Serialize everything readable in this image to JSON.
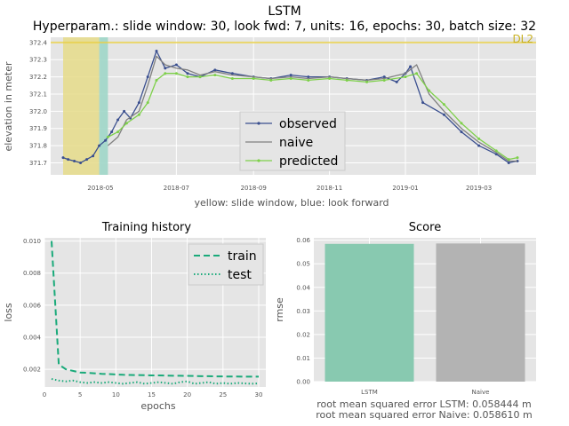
{
  "figure": {
    "title": "LSTM",
    "subtitle": "Hyperparam.: slide window: 30, look fwd: 7, units: 16, epochs: 30, batch size: 32"
  },
  "chart_data": [
    {
      "type": "line",
      "id": "main",
      "ylabel": "elevation in meter",
      "xlabel": "yellow: slide window, blue: look forward",
      "ylim": [
        371.63,
        372.43
      ],
      "xlim": [
        "2018-03-22",
        "2019-04-16"
      ],
      "x_ticks": [
        "2018-05",
        "2018-07",
        "2018-09",
        "2018-11",
        "2019-01",
        "2019-03"
      ],
      "y_ticks": [
        "371.7",
        "371.8",
        "371.9",
        "372.0",
        "372.1",
        "372.2",
        "372.3",
        "372.4"
      ],
      "reference_line": {
        "label": "DL2",
        "value": 372.4,
        "color": "#e8d04a"
      },
      "slide_window": {
        "start": "2018-04-01",
        "end": "2018-04-30",
        "color": "#e6dc8a"
      },
      "look_forward": {
        "start": "2018-04-30",
        "end": "2018-05-07",
        "color": "#9fd6c8"
      },
      "grid": true,
      "legend_position": "center",
      "series": [
        {
          "name": "observed",
          "color": "#3a4f8f",
          "marker": true,
          "x": [
            "2018-04-01",
            "2018-04-05",
            "2018-04-10",
            "2018-04-15",
            "2018-04-20",
            "2018-04-25",
            "2018-04-30",
            "2018-05-05",
            "2018-05-10",
            "2018-05-15",
            "2018-05-20",
            "2018-05-25",
            "2018-06-01",
            "2018-06-08",
            "2018-06-15",
            "2018-06-22",
            "2018-07-01",
            "2018-07-10",
            "2018-07-20",
            "2018-08-01",
            "2018-08-15",
            "2018-09-01",
            "2018-09-15",
            "2018-10-01",
            "2018-10-15",
            "2018-11-01",
            "2018-11-15",
            "2018-12-01",
            "2018-12-15",
            "2018-12-25",
            "2019-01-01",
            "2019-01-05",
            "2019-01-15",
            "2019-02-01",
            "2019-02-15",
            "2019-03-01",
            "2019-03-15",
            "2019-03-25",
            "2019-04-01"
          ],
          "y": [
            371.73,
            371.72,
            371.71,
            371.7,
            371.72,
            371.74,
            371.8,
            371.83,
            371.88,
            371.95,
            372.0,
            371.96,
            372.05,
            372.2,
            372.35,
            372.25,
            372.27,
            372.22,
            372.2,
            372.24,
            372.22,
            372.2,
            372.19,
            372.21,
            372.2,
            372.2,
            372.19,
            372.18,
            372.2,
            372.17,
            372.22,
            372.26,
            372.05,
            371.98,
            371.88,
            371.8,
            371.75,
            371.7,
            371.71
          ]
        },
        {
          "name": "naive",
          "color": "#808080",
          "marker": false,
          "x": [
            "2018-05-07",
            "2018-05-15",
            "2018-05-22",
            "2018-06-01",
            "2018-06-08",
            "2018-06-15",
            "2018-06-22",
            "2018-07-01",
            "2018-07-10",
            "2018-07-20",
            "2018-08-01",
            "2018-08-15",
            "2018-09-01",
            "2018-09-15",
            "2018-10-01",
            "2018-10-15",
            "2018-11-01",
            "2018-11-15",
            "2018-12-01",
            "2018-12-15",
            "2019-01-01",
            "2019-01-10",
            "2019-01-20",
            "2019-02-01",
            "2019-02-15",
            "2019-03-01",
            "2019-03-15",
            "2019-03-25",
            "2019-04-01"
          ],
          "y": [
            371.8,
            371.85,
            371.95,
            372.0,
            372.15,
            372.32,
            372.27,
            372.25,
            372.24,
            372.21,
            372.23,
            372.21,
            372.2,
            372.19,
            372.2,
            372.19,
            372.2,
            372.19,
            372.18,
            372.19,
            372.22,
            372.27,
            372.1,
            372.0,
            371.9,
            371.82,
            371.76,
            371.71,
            371.71
          ]
        },
        {
          "name": "predicted",
          "color": "#7ed04a",
          "marker": true,
          "x": [
            "2018-05-07",
            "2018-05-15",
            "2018-05-22",
            "2018-06-01",
            "2018-06-08",
            "2018-06-15",
            "2018-06-22",
            "2018-07-01",
            "2018-07-10",
            "2018-07-20",
            "2018-08-01",
            "2018-08-15",
            "2018-09-01",
            "2018-09-15",
            "2018-10-01",
            "2018-10-15",
            "2018-11-01",
            "2018-11-15",
            "2018-12-01",
            "2018-12-15",
            "2019-01-01",
            "2019-01-10",
            "2019-01-20",
            "2019-02-01",
            "2019-02-15",
            "2019-03-01",
            "2019-03-15",
            "2019-03-25",
            "2019-04-01"
          ],
          "y": [
            371.85,
            371.88,
            371.93,
            371.98,
            372.05,
            372.18,
            372.22,
            372.22,
            372.2,
            372.2,
            372.21,
            372.19,
            372.19,
            372.18,
            372.19,
            372.18,
            372.19,
            372.18,
            372.17,
            372.18,
            372.2,
            372.22,
            372.12,
            372.04,
            371.93,
            371.84,
            371.77,
            371.72,
            371.73
          ]
        }
      ]
    },
    {
      "type": "line",
      "id": "history",
      "title": "Training history",
      "xlabel": "epochs",
      "ylabel": "loss",
      "xlim": [
        0,
        31
      ],
      "ylim": [
        0.0009,
        0.0102
      ],
      "x_ticks": [
        0,
        5,
        10,
        15,
        20,
        25,
        30
      ],
      "y_ticks": [
        "0.002",
        "0.004",
        "0.006",
        "0.008",
        "0.010"
      ],
      "grid": true,
      "legend_position": "top-right",
      "series": [
        {
          "name": "train",
          "color": "#1aaa7a",
          "style": "dashed",
          "x": [
            1,
            2,
            3,
            4,
            5,
            6,
            7,
            8,
            9,
            10,
            11,
            12,
            13,
            14,
            15,
            16,
            17,
            18,
            19,
            20,
            21,
            22,
            23,
            24,
            25,
            26,
            27,
            28,
            29,
            30
          ],
          "y": [
            0.01,
            0.0023,
            0.002,
            0.0019,
            0.0018,
            0.00178,
            0.00175,
            0.00172,
            0.0017,
            0.00168,
            0.00166,
            0.00165,
            0.00164,
            0.00163,
            0.00162,
            0.00162,
            0.00161,
            0.0016,
            0.0016,
            0.00159,
            0.00158,
            0.00157,
            0.00157,
            0.00156,
            0.00156,
            0.00155,
            0.00155,
            0.00154,
            0.00154,
            0.00154
          ]
        },
        {
          "name": "test",
          "color": "#1aaa7a",
          "style": "dotted",
          "x": [
            1,
            2,
            3,
            4,
            5,
            6,
            7,
            8,
            9,
            10,
            11,
            12,
            13,
            14,
            15,
            16,
            17,
            18,
            19,
            20,
            21,
            22,
            23,
            24,
            25,
            26,
            27,
            28,
            29,
            30
          ],
          "y": [
            0.0014,
            0.0013,
            0.00125,
            0.0013,
            0.0012,
            0.00115,
            0.0012,
            0.00115,
            0.0012,
            0.00115,
            0.0011,
            0.00115,
            0.0012,
            0.0011,
            0.00115,
            0.0012,
            0.00115,
            0.0011,
            0.0012,
            0.00125,
            0.0011,
            0.00115,
            0.0012,
            0.0011,
            0.00115,
            0.0011,
            0.00115,
            0.00112,
            0.0011,
            0.00112
          ]
        }
      ]
    },
    {
      "type": "bar",
      "id": "score",
      "title": "Score",
      "ylabel": "rmse",
      "categories": [
        "LSTM",
        "Naive"
      ],
      "values": [
        0.058444,
        0.05861
      ],
      "colors": [
        "#88c9b0",
        "#b3b3b3"
      ],
      "ylim": [
        0,
        0.061
      ],
      "y_ticks": [
        "0.00",
        "0.01",
        "0.02",
        "0.03",
        "0.04",
        "0.05",
        "0.06"
      ],
      "grid": true,
      "notes": [
        "root mean squared error LSTM: 0.058444 m",
        "root mean squared error Naive: 0.058610 m"
      ]
    }
  ]
}
